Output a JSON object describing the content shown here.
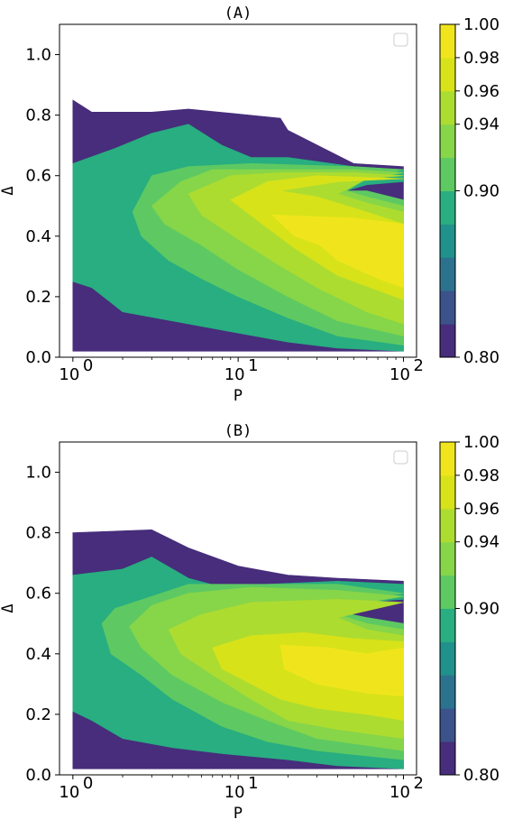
{
  "chart_data": [
    {
      "id": "A",
      "type": "contourf",
      "title": "(A)",
      "xlabel": "P",
      "ylabel": "Δ",
      "xscale": "log",
      "xlim": [
        0.83,
        120
      ],
      "ylim": [
        0.0,
        1.1
      ],
      "xticks": [
        {
          "value": 1,
          "base": "10",
          "exp": "0"
        },
        {
          "value": 10,
          "base": "10",
          "exp": "1"
        },
        {
          "value": 100,
          "base": "10",
          "exp": "2"
        }
      ],
      "yticks": [
        "0.0",
        "0.2",
        "0.4",
        "0.6",
        "0.8",
        "1.0"
      ],
      "colorbar": {
        "min": 0.8,
        "max": 1.0,
        "levels": 10,
        "ticks": [
          "0.80",
          "0.90",
          "0.94",
          "0.96",
          "0.98",
          "1.00"
        ]
      },
      "legend": "empty box, top-right",
      "regions": [
        {
          "level": 0.8,
          "poly": [
            [
              1,
              0.02
            ],
            [
              100,
              0.02
            ],
            [
              100,
              0.63
            ],
            [
              50,
              0.64
            ],
            [
              20,
              0.75
            ],
            [
              18,
              0.79
            ],
            [
              5,
              0.82
            ],
            [
              3,
              0.81
            ],
            [
              1.3,
              0.81
            ],
            [
              1.0,
              0.85
            ]
          ]
        },
        {
          "level": 0.88,
          "poly": [
            [
              1,
              0.25
            ],
            [
              1.3,
              0.23
            ],
            [
              2,
              0.15
            ],
            [
              5,
              0.11
            ],
            [
              10,
              0.08
            ],
            [
              20,
              0.05
            ],
            [
              40,
              0.03
            ],
            [
              100,
              0.02
            ],
            [
              100,
              0.5
            ],
            [
              60,
              0.53
            ],
            [
              45,
              0.55
            ],
            [
              60,
              0.57
            ],
            [
              100,
              0.58
            ],
            [
              100,
              0.62
            ],
            [
              50,
              0.63
            ],
            [
              20,
              0.66
            ],
            [
              12,
              0.66
            ],
            [
              8,
              0.7
            ],
            [
              5,
              0.77
            ],
            [
              3,
              0.74
            ],
            [
              1.8,
              0.69
            ],
            [
              1,
              0.64
            ]
          ]
        },
        {
          "level": 0.9,
          "poly": [
            [
              2.3,
              0.48
            ],
            [
              2.6,
              0.4
            ],
            [
              3.8,
              0.32
            ],
            [
              6,
              0.26
            ],
            [
              10,
              0.2
            ],
            [
              20,
              0.13
            ],
            [
              40,
              0.07
            ],
            [
              100,
              0.04
            ],
            [
              100,
              0.52
            ],
            [
              60,
              0.55
            ],
            [
              45,
              0.55
            ],
            [
              60,
              0.59
            ],
            [
              100,
              0.62
            ],
            [
              50,
              0.63
            ],
            [
              12,
              0.64
            ],
            [
              5,
              0.63
            ],
            [
              3,
              0.6
            ]
          ]
        },
        {
          "level": 0.92,
          "poly": [
            [
              3,
              0.5
            ],
            [
              3.6,
              0.44
            ],
            [
              6,
              0.37
            ],
            [
              10,
              0.29
            ],
            [
              20,
              0.2
            ],
            [
              40,
              0.12
            ],
            [
              100,
              0.07
            ],
            [
              100,
              0.5
            ],
            [
              60,
              0.53
            ],
            [
              45,
              0.55
            ],
            [
              60,
              0.59
            ],
            [
              100,
              0.61
            ],
            [
              50,
              0.62
            ],
            [
              15,
              0.62
            ],
            [
              7,
              0.62
            ],
            [
              4.5,
              0.58
            ]
          ]
        },
        {
          "level": 0.94,
          "poly": [
            [
              5,
              0.54
            ],
            [
              6,
              0.47
            ],
            [
              10,
              0.39
            ],
            [
              17,
              0.31
            ],
            [
              30,
              0.23
            ],
            [
              60,
              0.15
            ],
            [
              100,
              0.11
            ],
            [
              100,
              0.48
            ],
            [
              60,
              0.51
            ],
            [
              40,
              0.54
            ],
            [
              60,
              0.59
            ],
            [
              100,
              0.6
            ],
            [
              50,
              0.61
            ],
            [
              18,
              0.61
            ],
            [
              9,
              0.6
            ]
          ]
        },
        {
          "level": 0.96,
          "poly": [
            [
              9,
              0.52
            ],
            [
              14,
              0.44
            ],
            [
              22,
              0.36
            ],
            [
              40,
              0.27
            ],
            [
              100,
              0.19
            ],
            [
              100,
              0.44
            ],
            [
              60,
              0.48
            ],
            [
              30,
              0.53
            ],
            [
              18,
              0.55
            ],
            [
              40,
              0.58
            ],
            [
              100,
              0.59
            ],
            [
              30,
              0.6
            ],
            [
              15,
              0.58
            ]
          ]
        },
        {
          "level": 0.98,
          "poly": [
            [
              16,
              0.47
            ],
            [
              22,
              0.4
            ],
            [
              50,
              0.33
            ],
            [
              100,
              0.28
            ],
            [
              100,
              0.44
            ],
            [
              50,
              0.46
            ]
          ]
        },
        {
          "level": 0.99,
          "poly": [
            [
              27,
              0.4
            ],
            [
              40,
              0.32
            ],
            [
              70,
              0.26
            ],
            [
              100,
              0.23
            ],
            [
              100,
              0.4
            ],
            [
              50,
              0.41
            ]
          ]
        }
      ]
    },
    {
      "id": "B",
      "type": "contourf",
      "title": "(B)",
      "xlabel": "P",
      "ylabel": "Δ",
      "xscale": "log",
      "xlim": [
        0.83,
        120
      ],
      "ylim": [
        0.0,
        1.1
      ],
      "xticks": [
        {
          "value": 1,
          "base": "10",
          "exp": "0"
        },
        {
          "value": 10,
          "base": "10",
          "exp": "1"
        },
        {
          "value": 100,
          "base": "10",
          "exp": "2"
        }
      ],
      "yticks": [
        "0.0",
        "0.2",
        "0.4",
        "0.6",
        "0.8",
        "1.0"
      ],
      "colorbar": {
        "min": 0.8,
        "max": 1.0,
        "levels": 10,
        "ticks": [
          "0.80",
          "0.90",
          "0.94",
          "0.96",
          "0.98",
          "1.00"
        ]
      },
      "legend": "empty box, top-right",
      "regions": [
        {
          "level": 0.8,
          "poly": [
            [
              1,
              0.02
            ],
            [
              100,
              0.02
            ],
            [
              100,
              0.64
            ],
            [
              40,
              0.65
            ],
            [
              20,
              0.66
            ],
            [
              10,
              0.69
            ],
            [
              5,
              0.75
            ],
            [
              3,
              0.81
            ],
            [
              1,
              0.8
            ]
          ]
        },
        {
          "level": 0.88,
          "poly": [
            [
              1,
              0.21
            ],
            [
              1.3,
              0.18
            ],
            [
              2,
              0.12
            ],
            [
              4,
              0.09
            ],
            [
              8,
              0.07
            ],
            [
              20,
              0.05
            ],
            [
              40,
              0.03
            ],
            [
              100,
              0.02
            ],
            [
              100,
              0.49
            ],
            [
              60,
              0.51
            ],
            [
              35,
              0.54
            ],
            [
              55,
              0.57
            ],
            [
              100,
              0.58
            ],
            [
              100,
              0.63
            ],
            [
              40,
              0.64
            ],
            [
              15,
              0.63
            ],
            [
              8,
              0.62
            ],
            [
              5,
              0.65
            ],
            [
              3,
              0.72
            ],
            [
              2,
              0.68
            ],
            [
              1,
              0.66
            ]
          ]
        },
        {
          "level": 0.9,
          "poly": [
            [
              1.5,
              0.5
            ],
            [
              1.7,
              0.4
            ],
            [
              2.6,
              0.33
            ],
            [
              4,
              0.25
            ],
            [
              8,
              0.16
            ],
            [
              15,
              0.11
            ],
            [
              30,
              0.08
            ],
            [
              100,
              0.05
            ],
            [
              100,
              0.5
            ],
            [
              60,
              0.52
            ],
            [
              40,
              0.54
            ],
            [
              60,
              0.58
            ],
            [
              100,
              0.6
            ],
            [
              40,
              0.63
            ],
            [
              12,
              0.63
            ],
            [
              5,
              0.63
            ],
            [
              3,
              0.59
            ],
            [
              1.8,
              0.55
            ]
          ]
        },
        {
          "level": 0.92,
          "poly": [
            [
              2.2,
              0.49
            ],
            [
              2.6,
              0.42
            ],
            [
              4,
              0.33
            ],
            [
              8,
              0.24
            ],
            [
              15,
              0.18
            ],
            [
              30,
              0.12
            ],
            [
              100,
              0.08
            ],
            [
              100,
              0.48
            ],
            [
              60,
              0.5
            ],
            [
              40,
              0.53
            ],
            [
              60,
              0.57
            ],
            [
              100,
              0.59
            ],
            [
              40,
              0.61
            ],
            [
              12,
              0.62
            ],
            [
              5,
              0.6
            ],
            [
              3,
              0.56
            ]
          ]
        },
        {
          "level": 0.94,
          "poly": [
            [
              3.8,
              0.48
            ],
            [
              4.5,
              0.4
            ],
            [
              7,
              0.33
            ],
            [
              12,
              0.25
            ],
            [
              20,
              0.18
            ],
            [
              40,
              0.15
            ],
            [
              100,
              0.12
            ],
            [
              100,
              0.46
            ],
            [
              60,
              0.48
            ],
            [
              40,
              0.52
            ],
            [
              100,
              0.57
            ],
            [
              40,
              0.58
            ],
            [
              12,
              0.57
            ],
            [
              6,
              0.53
            ]
          ]
        },
        {
          "level": 0.96,
          "poly": [
            [
              7,
              0.42
            ],
            [
              8,
              0.35
            ],
            [
              12,
              0.3
            ],
            [
              18,
              0.25
            ],
            [
              30,
              0.22
            ],
            [
              60,
              0.2
            ],
            [
              100,
              0.18
            ],
            [
              100,
              0.44
            ],
            [
              50,
              0.45
            ],
            [
              25,
              0.47
            ],
            [
              12,
              0.46
            ]
          ]
        },
        {
          "level": 0.98,
          "poly": [
            [
              18,
              0.43
            ],
            [
              19,
              0.35
            ],
            [
              30,
              0.3
            ],
            [
              60,
              0.27
            ],
            [
              100,
              0.26
            ],
            [
              100,
              0.42
            ],
            [
              60,
              0.4
            ],
            [
              35,
              0.42
            ]
          ]
        },
        {
          "level": 0.99,
          "poly": [
            [
              45,
              0.38
            ],
            [
              70,
              0.34
            ],
            [
              100,
              0.31
            ],
            [
              100,
              0.41
            ],
            [
              70,
              0.4
            ]
          ]
        }
      ]
    }
  ]
}
